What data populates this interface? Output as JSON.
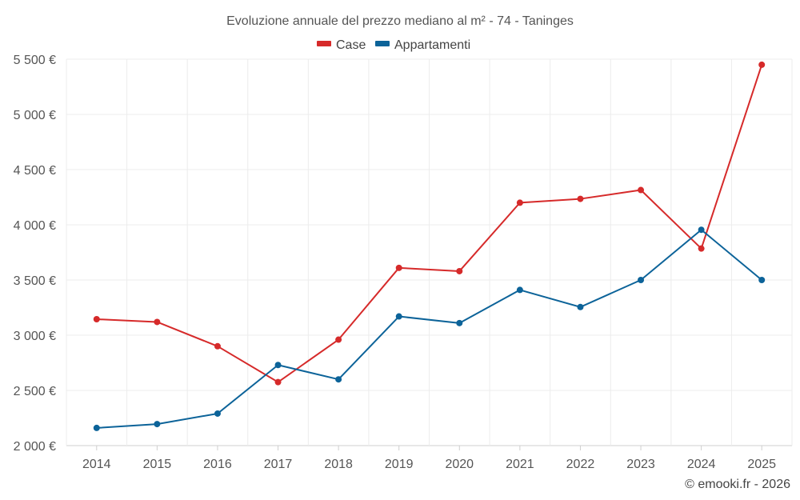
{
  "chart_data": {
    "type": "line",
    "title": "Evoluzione annuale del prezzo mediano al m² - 74 - Taninges",
    "categories": [
      "2014",
      "2015",
      "2016",
      "2017",
      "2018",
      "2019",
      "2020",
      "2021",
      "2022",
      "2023",
      "2024",
      "2025"
    ],
    "ylim": [
      2000,
      5500
    ],
    "yticks": [
      2000,
      2500,
      3000,
      3500,
      4000,
      4500,
      5000,
      5500
    ],
    "ytick_labels": [
      "2 000 €",
      "2 500 €",
      "3 000 €",
      "3 500 €",
      "4 000 €",
      "4 500 €",
      "5 000 €",
      "5 500 €"
    ],
    "legend_position": "top-center",
    "grid": true,
    "series": [
      {
        "name": "Case",
        "color": "#d62a2a",
        "values": [
          3145,
          3120,
          2900,
          2575,
          2960,
          3610,
          3580,
          4200,
          4235,
          4315,
          3785,
          5450
        ]
      },
      {
        "name": "Appartamenti",
        "color": "#0c6399",
        "values": [
          2160,
          2195,
          2290,
          2730,
          2600,
          3170,
          3110,
          3410,
          3255,
          3500,
          3955,
          3500
        ]
      }
    ]
  },
  "credit": "© emooki.fr - 2026"
}
